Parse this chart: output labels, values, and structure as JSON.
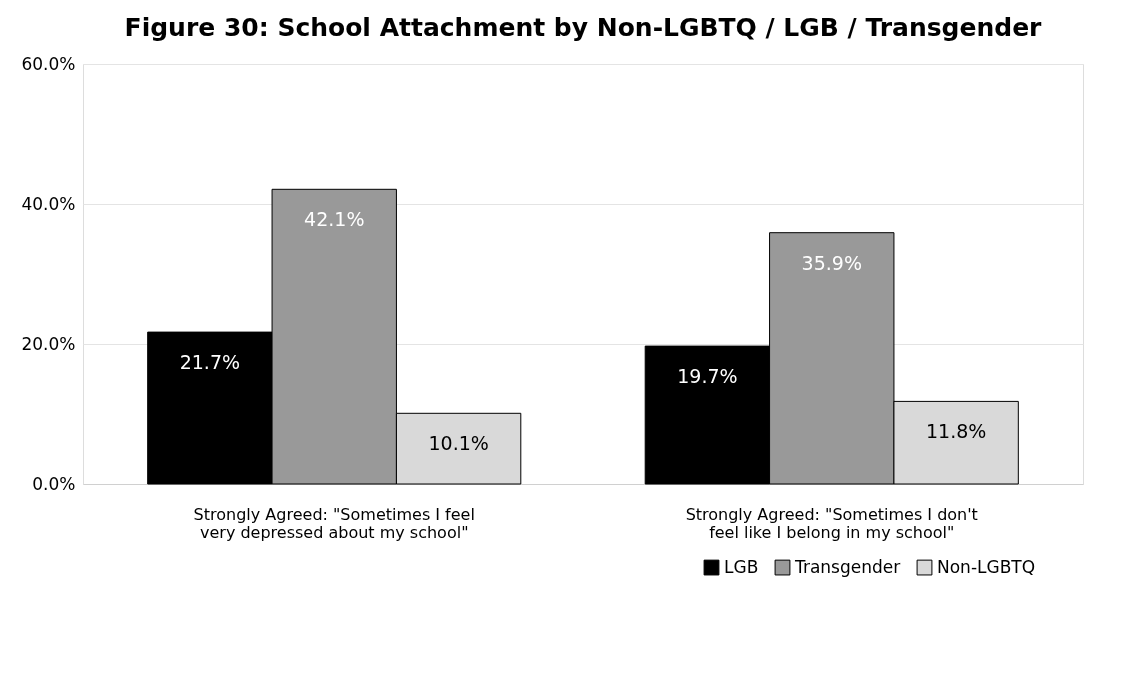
{
  "chart_data": {
    "type": "bar",
    "title": "Figure 30: School Attachment by Non-LGBTQ / LGB / Transgender",
    "categories": [
      "Strongly Agreed: \"Sometimes I feel very depressed about my school\"",
      "Strongly Agreed: \"Sometimes I don't feel like I belong in my school\""
    ],
    "series": [
      {
        "name": "LGB",
        "color": "#000000",
        "values": [
          21.7,
          19.7
        ],
        "value_labels": [
          "21.7%",
          "19.7%"
        ]
      },
      {
        "name": "Transgender",
        "color": "#999999",
        "values": [
          42.1,
          35.9
        ],
        "value_labels": [
          "42.1%",
          "35.9%"
        ]
      },
      {
        "name": "Non-LGBTQ",
        "color": "#d9d9d9",
        "values": [
          10.1,
          11.8
        ],
        "value_labels": [
          "10.1%",
          "11.8%"
        ]
      }
    ],
    "ylim": [
      0,
      60
    ],
    "yticks": [
      {
        "value": 0,
        "label": "0.0%"
      },
      {
        "value": 20,
        "label": "20.0%"
      },
      {
        "value": 40,
        "label": "40.0%"
      },
      {
        "value": 60,
        "label": "60.0%"
      }
    ],
    "grid": "y",
    "legend": "bottom right"
  }
}
